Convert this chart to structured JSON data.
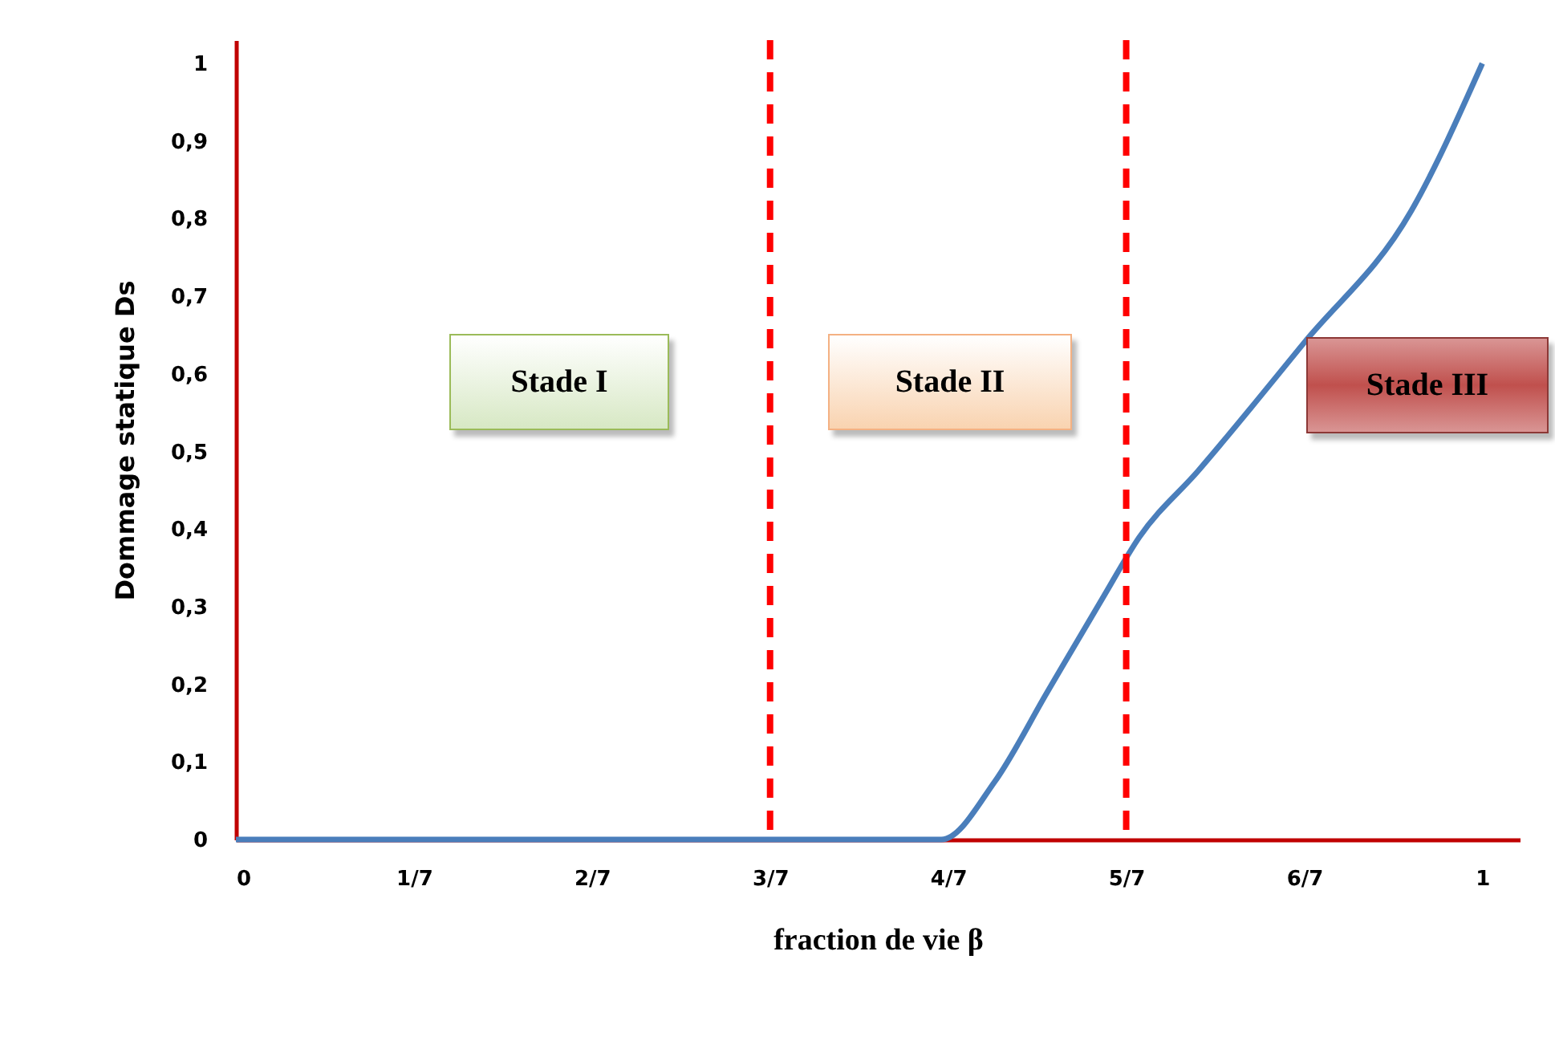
{
  "chart_data": {
    "type": "line",
    "xlabel": "fraction de vie β",
    "ylabel": "Dommage statique Ds",
    "x": [
      0,
      0.566,
      0.609,
      0.651,
      0.695,
      0.725,
      0.772,
      0.857,
      0.943,
      1.0
    ],
    "series": [
      {
        "color": "#4a7ebb",
        "values": [
          0,
          0,
          0.075,
          0.19,
          0.31,
          0.39,
          0.475,
          0.64,
          0.81,
          1.0
        ]
      }
    ],
    "xlim": [
      0,
      1.03
    ],
    "ylim": [
      0,
      1.03
    ],
    "xticks": [
      0,
      {
        "value": 0.142857,
        "label": "1/7"
      },
      {
        "value": 0.285714,
        "label": "2/7"
      },
      {
        "value": 0.428571,
        "label": "3/7"
      },
      {
        "value": 0.571429,
        "label": "4/7"
      },
      {
        "value": 0.714286,
        "label": "5/7"
      },
      {
        "value": 0.857143,
        "label": "6/7"
      },
      1
    ],
    "yticks": [
      0,
      {
        "value": 0.1,
        "label": "0,1"
      },
      {
        "value": 0.2,
        "label": "0,2"
      },
      {
        "value": 0.3,
        "label": "0,3"
      },
      {
        "value": 0.4,
        "label": "0,4"
      },
      {
        "value": 0.5,
        "label": "0,5"
      },
      {
        "value": 0.6,
        "label": "0,6"
      },
      {
        "value": 0.7,
        "label": "0,7"
      },
      {
        "value": 0.8,
        "label": "0,8"
      },
      {
        "value": 0.9,
        "label": "0,9"
      },
      1
    ],
    "ref_lines": [
      {
        "axis": "x",
        "value": 0.428571,
        "color": "#ff0000",
        "line_style": "dashed"
      },
      {
        "axis": "x",
        "value": 0.714286,
        "color": "#ff0000",
        "line_style": "dashed"
      }
    ],
    "annotations": [
      "Stade I",
      "Stade II",
      "Stade III"
    ],
    "grid": false,
    "marker": "none",
    "line_style": "solid"
  }
}
